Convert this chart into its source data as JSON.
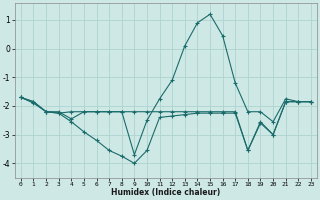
{
  "xlabel": "Humidex (Indice chaleur)",
  "bg_color": "#cee9e5",
  "grid_color": "#add4cf",
  "line_color": "#1a6b6b",
  "marker": "+",
  "xlim": [
    -0.5,
    23.5
  ],
  "ylim": [
    -4.5,
    1.6
  ],
  "yticks": [
    -4,
    -3,
    -2,
    -1,
    0,
    1
  ],
  "xticks": [
    0,
    1,
    2,
    3,
    4,
    5,
    6,
    7,
    8,
    9,
    10,
    11,
    12,
    13,
    14,
    15,
    16,
    17,
    18,
    19,
    20,
    21,
    22,
    23
  ],
  "s1_y": [
    -1.7,
    -1.9,
    -2.2,
    -2.25,
    -2.2,
    -2.2,
    -2.2,
    -2.2,
    -2.2,
    -3.7,
    -2.5,
    -1.75,
    -1.1,
    0.1,
    0.9,
    1.2,
    0.45,
    -1.2,
    -2.2,
    -2.2,
    -2.55,
    -1.75,
    -1.85,
    -1.85
  ],
  "s2_y": [
    -1.7,
    -1.85,
    -2.2,
    -2.25,
    -2.55,
    -2.9,
    -3.2,
    -3.55,
    -3.75,
    -4.0,
    -3.55,
    -2.4,
    -2.35,
    -2.3,
    -2.25,
    -2.25,
    -2.25,
    -2.25,
    -3.55,
    -2.6,
    -3.0,
    -1.85,
    -1.85,
    -1.85
  ],
  "s3_y": [
    -1.7,
    -1.85,
    -2.2,
    -2.2,
    -2.45,
    -2.2,
    -2.2,
    -2.2,
    -2.2,
    -2.2,
    -2.2,
    -2.2,
    -2.2,
    -2.2,
    -2.2,
    -2.2,
    -2.2,
    -2.2,
    -3.55,
    -2.55,
    -3.0,
    -1.85,
    -1.85,
    -1.85
  ]
}
